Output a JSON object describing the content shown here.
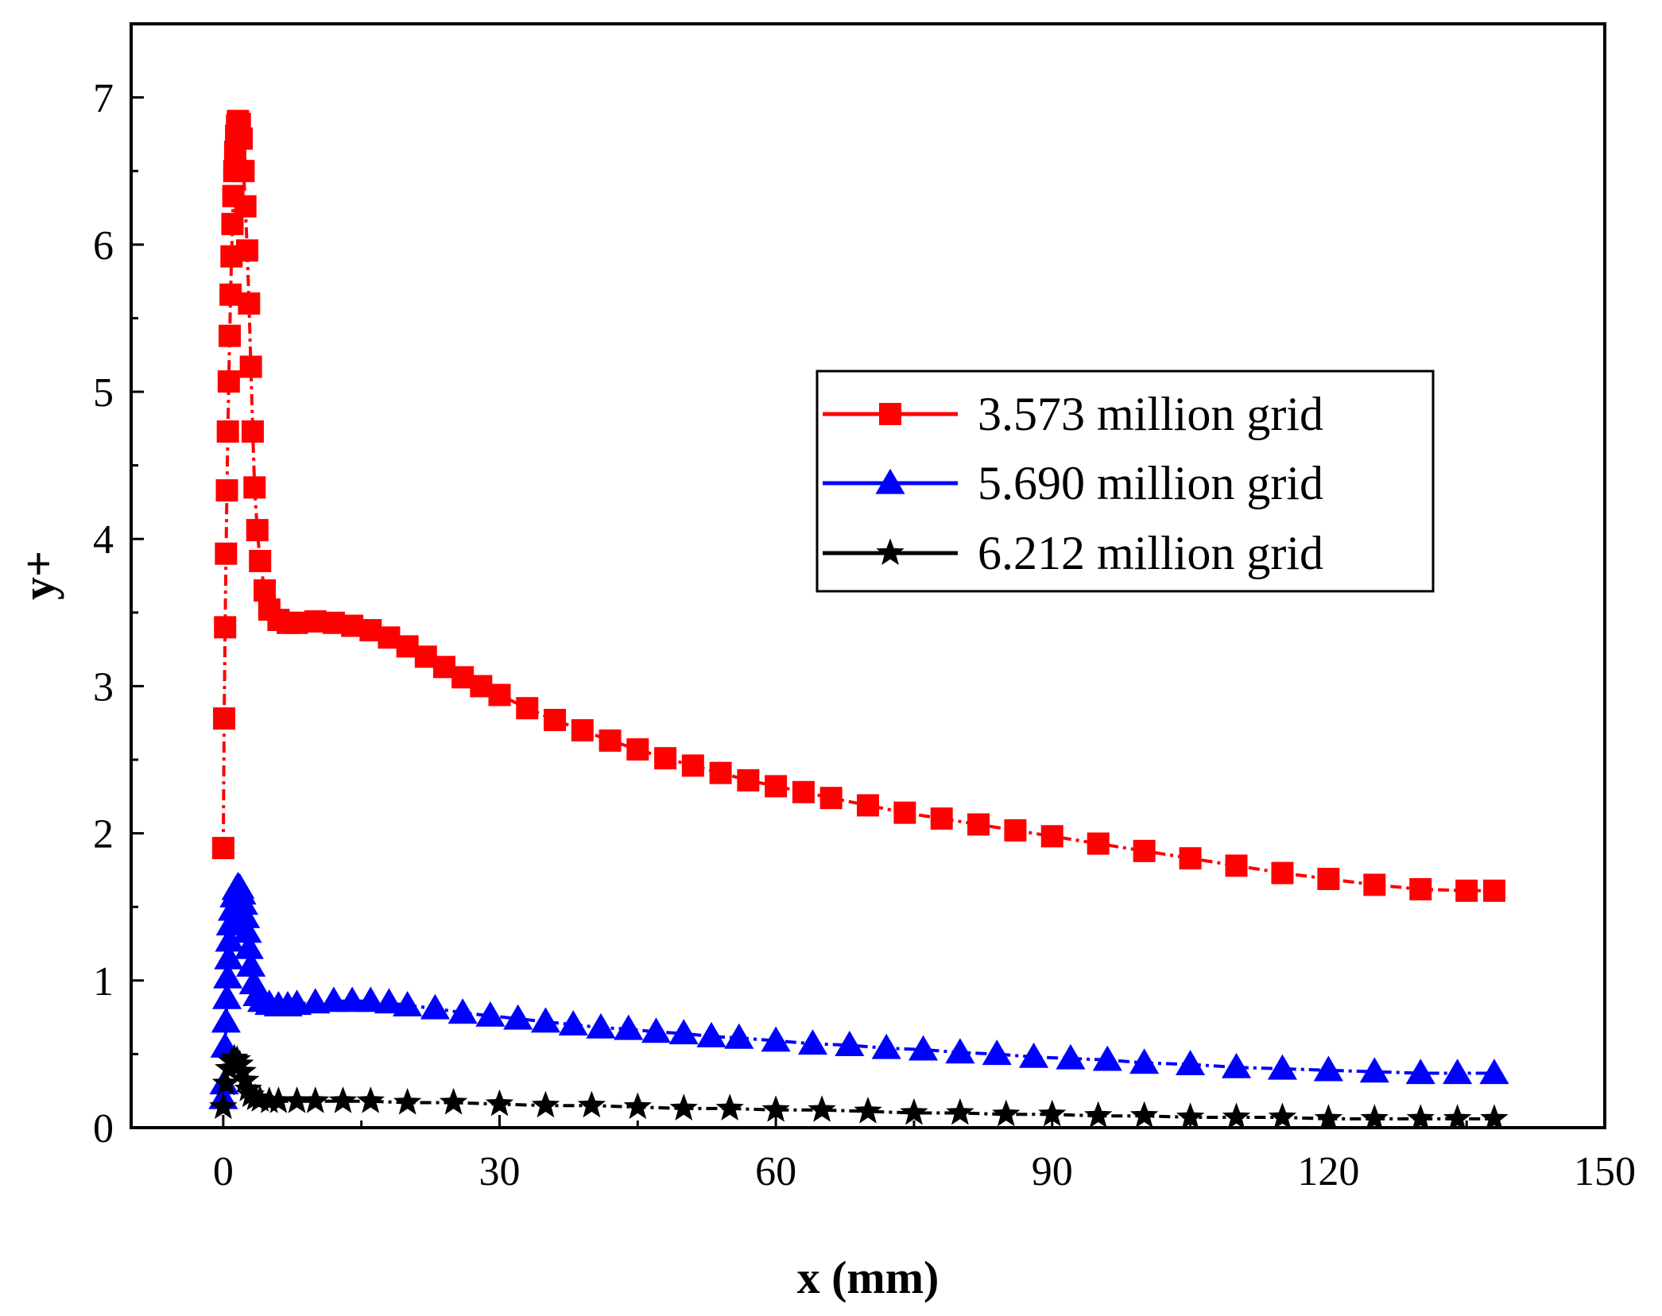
{
  "chart_data": {
    "type": "line",
    "title": "",
    "xlabel": "x (mm)",
    "ylabel": "y+",
    "xlim": [
      -10,
      150
    ],
    "ylim": [
      0,
      7.5
    ],
    "x_ticks": [
      0,
      30,
      60,
      90,
      120,
      150
    ],
    "y_ticks": [
      0,
      1,
      2,
      3,
      4,
      5,
      6,
      7
    ],
    "x_tick_labels": [
      "0",
      "30",
      "60",
      "90",
      "120",
      "150"
    ],
    "y_tick_labels": [
      "0",
      "1",
      "2",
      "3",
      "4",
      "5",
      "6",
      "7"
    ],
    "grid": false,
    "legend_position": "center-right",
    "series": [
      {
        "name": "3.573 million grid",
        "label": "3.573 million grid",
        "color": "#ff0000",
        "marker": "square",
        "points": [
          [
            0,
            1.9
          ],
          [
            0.1,
            2.78
          ],
          [
            0.2,
            3.4
          ],
          [
            0.3,
            3.9
          ],
          [
            0.4,
            4.33
          ],
          [
            0.5,
            4.73
          ],
          [
            0.6,
            5.07
          ],
          [
            0.7,
            5.38
          ],
          [
            0.8,
            5.66
          ],
          [
            0.9,
            5.92
          ],
          [
            1.0,
            6.14
          ],
          [
            1.1,
            6.33
          ],
          [
            1.2,
            6.5
          ],
          [
            1.3,
            6.63
          ],
          [
            1.4,
            6.74
          ],
          [
            1.5,
            6.81
          ],
          [
            1.6,
            6.84
          ],
          [
            1.8,
            6.82
          ],
          [
            2.0,
            6.72
          ],
          [
            2.2,
            6.5
          ],
          [
            2.4,
            6.26
          ],
          [
            2.6,
            5.96
          ],
          [
            2.8,
            5.6
          ],
          [
            3.0,
            5.17
          ],
          [
            3.2,
            4.73
          ],
          [
            3.4,
            4.35
          ],
          [
            3.7,
            4.06
          ],
          [
            4.0,
            3.85
          ],
          [
            4.5,
            3.65
          ],
          [
            5.0,
            3.52
          ],
          [
            6.0,
            3.45
          ],
          [
            7.0,
            3.43
          ],
          [
            8.0,
            3.43
          ],
          [
            10.0,
            3.44
          ],
          [
            12.0,
            3.43
          ],
          [
            14.0,
            3.41
          ],
          [
            16.0,
            3.38
          ],
          [
            18.0,
            3.33
          ],
          [
            20.0,
            3.27
          ],
          [
            22.0,
            3.2
          ],
          [
            24.0,
            3.13
          ],
          [
            26.0,
            3.06
          ],
          [
            28.0,
            3.0
          ],
          [
            30.0,
            2.94
          ],
          [
            33.0,
            2.85
          ],
          [
            36.0,
            2.77
          ],
          [
            39.0,
            2.7
          ],
          [
            42.0,
            2.63
          ],
          [
            45.0,
            2.57
          ],
          [
            48.0,
            2.51
          ],
          [
            51.0,
            2.46
          ],
          [
            54.0,
            2.41
          ],
          [
            57.0,
            2.36
          ],
          [
            60.0,
            2.32
          ],
          [
            63.0,
            2.28
          ],
          [
            66.0,
            2.24
          ],
          [
            70.0,
            2.19
          ],
          [
            74.0,
            2.14
          ],
          [
            78.0,
            2.1
          ],
          [
            82.0,
            2.06
          ],
          [
            86.0,
            2.02
          ],
          [
            90.0,
            1.98
          ],
          [
            95.0,
            1.93
          ],
          [
            100.0,
            1.88
          ],
          [
            105.0,
            1.83
          ],
          [
            110.0,
            1.78
          ],
          [
            115.0,
            1.73
          ],
          [
            120.0,
            1.69
          ],
          [
            125.0,
            1.65
          ],
          [
            130.0,
            1.62
          ],
          [
            135.0,
            1.61
          ],
          [
            138.0,
            1.61
          ]
        ]
      },
      {
        "name": "5.690 million grid",
        "label": "5.690 million grid",
        "color": "#0000ff",
        "marker": "triangle",
        "points": [
          [
            0,
            0.2
          ],
          [
            0.1,
            0.3
          ],
          [
            0.2,
            0.55
          ],
          [
            0.3,
            0.72
          ],
          [
            0.4,
            0.88
          ],
          [
            0.5,
            1.02
          ],
          [
            0.6,
            1.15
          ],
          [
            0.7,
            1.27
          ],
          [
            0.8,
            1.38
          ],
          [
            1.0,
            1.48
          ],
          [
            1.2,
            1.57
          ],
          [
            1.4,
            1.62
          ],
          [
            1.6,
            1.64
          ],
          [
            1.8,
            1.63
          ],
          [
            2.0,
            1.59
          ],
          [
            2.2,
            1.52
          ],
          [
            2.4,
            1.43
          ],
          [
            2.6,
            1.33
          ],
          [
            2.8,
            1.22
          ],
          [
            3.0,
            1.1
          ],
          [
            3.3,
            0.98
          ],
          [
            3.7,
            0.9
          ],
          [
            4.2,
            0.86
          ],
          [
            5.0,
            0.84
          ],
          [
            6.0,
            0.83
          ],
          [
            7.0,
            0.83
          ],
          [
            8.0,
            0.84
          ],
          [
            10.0,
            0.85
          ],
          [
            12.0,
            0.86
          ],
          [
            14.0,
            0.86
          ],
          [
            16.0,
            0.86
          ],
          [
            18.0,
            0.85
          ],
          [
            20.0,
            0.83
          ],
          [
            23.0,
            0.81
          ],
          [
            26.0,
            0.78
          ],
          [
            29.0,
            0.76
          ],
          [
            32.0,
            0.74
          ],
          [
            35.0,
            0.72
          ],
          [
            38.0,
            0.7
          ],
          [
            41.0,
            0.68
          ],
          [
            44.0,
            0.67
          ],
          [
            47.0,
            0.65
          ],
          [
            50.0,
            0.64
          ],
          [
            53.0,
            0.62
          ],
          [
            56.0,
            0.61
          ],
          [
            60.0,
            0.59
          ],
          [
            64.0,
            0.57
          ],
          [
            68.0,
            0.56
          ],
          [
            72.0,
            0.54
          ],
          [
            76.0,
            0.53
          ],
          [
            80.0,
            0.51
          ],
          [
            84.0,
            0.5
          ],
          [
            88.0,
            0.48
          ],
          [
            92.0,
            0.47
          ],
          [
            96.0,
            0.46
          ],
          [
            100.0,
            0.44
          ],
          [
            105.0,
            0.43
          ],
          [
            110.0,
            0.41
          ],
          [
            115.0,
            0.4
          ],
          [
            120.0,
            0.39
          ],
          [
            125.0,
            0.38
          ],
          [
            130.0,
            0.37
          ],
          [
            134.0,
            0.37
          ],
          [
            138.0,
            0.37
          ]
        ]
      },
      {
        "name": "6.212 million grid",
        "label": "6.212 million grid",
        "color": "#000000",
        "marker": "star",
        "points": [
          [
            0,
            0.14
          ],
          [
            0.3,
            0.3
          ],
          [
            0.6,
            0.4
          ],
          [
            0.9,
            0.45
          ],
          [
            1.2,
            0.47
          ],
          [
            1.5,
            0.46
          ],
          [
            1.8,
            0.43
          ],
          [
            2.1,
            0.38
          ],
          [
            2.4,
            0.32
          ],
          [
            2.7,
            0.26
          ],
          [
            3.0,
            0.22
          ],
          [
            3.5,
            0.2
          ],
          [
            4.0,
            0.19
          ],
          [
            5.0,
            0.18
          ],
          [
            6.0,
            0.18
          ],
          [
            8.0,
            0.18
          ],
          [
            10.0,
            0.18
          ],
          [
            13.0,
            0.18
          ],
          [
            16.0,
            0.18
          ],
          [
            20.0,
            0.17
          ],
          [
            25.0,
            0.17
          ],
          [
            30.0,
            0.16
          ],
          [
            35.0,
            0.15
          ],
          [
            40.0,
            0.15
          ],
          [
            45.0,
            0.14
          ],
          [
            50.0,
            0.13
          ],
          [
            55.0,
            0.13
          ],
          [
            60.0,
            0.12
          ],
          [
            65.0,
            0.12
          ],
          [
            70.0,
            0.11
          ],
          [
            75.0,
            0.1
          ],
          [
            80.0,
            0.1
          ],
          [
            85.0,
            0.09
          ],
          [
            90.0,
            0.09
          ],
          [
            95.0,
            0.08
          ],
          [
            100.0,
            0.08
          ],
          [
            105.0,
            0.07
          ],
          [
            110.0,
            0.07
          ],
          [
            115.0,
            0.07
          ],
          [
            120.0,
            0.06
          ],
          [
            125.0,
            0.06
          ],
          [
            130.0,
            0.06
          ],
          [
            134.0,
            0.06
          ],
          [
            138.0,
            0.06
          ]
        ]
      }
    ]
  }
}
